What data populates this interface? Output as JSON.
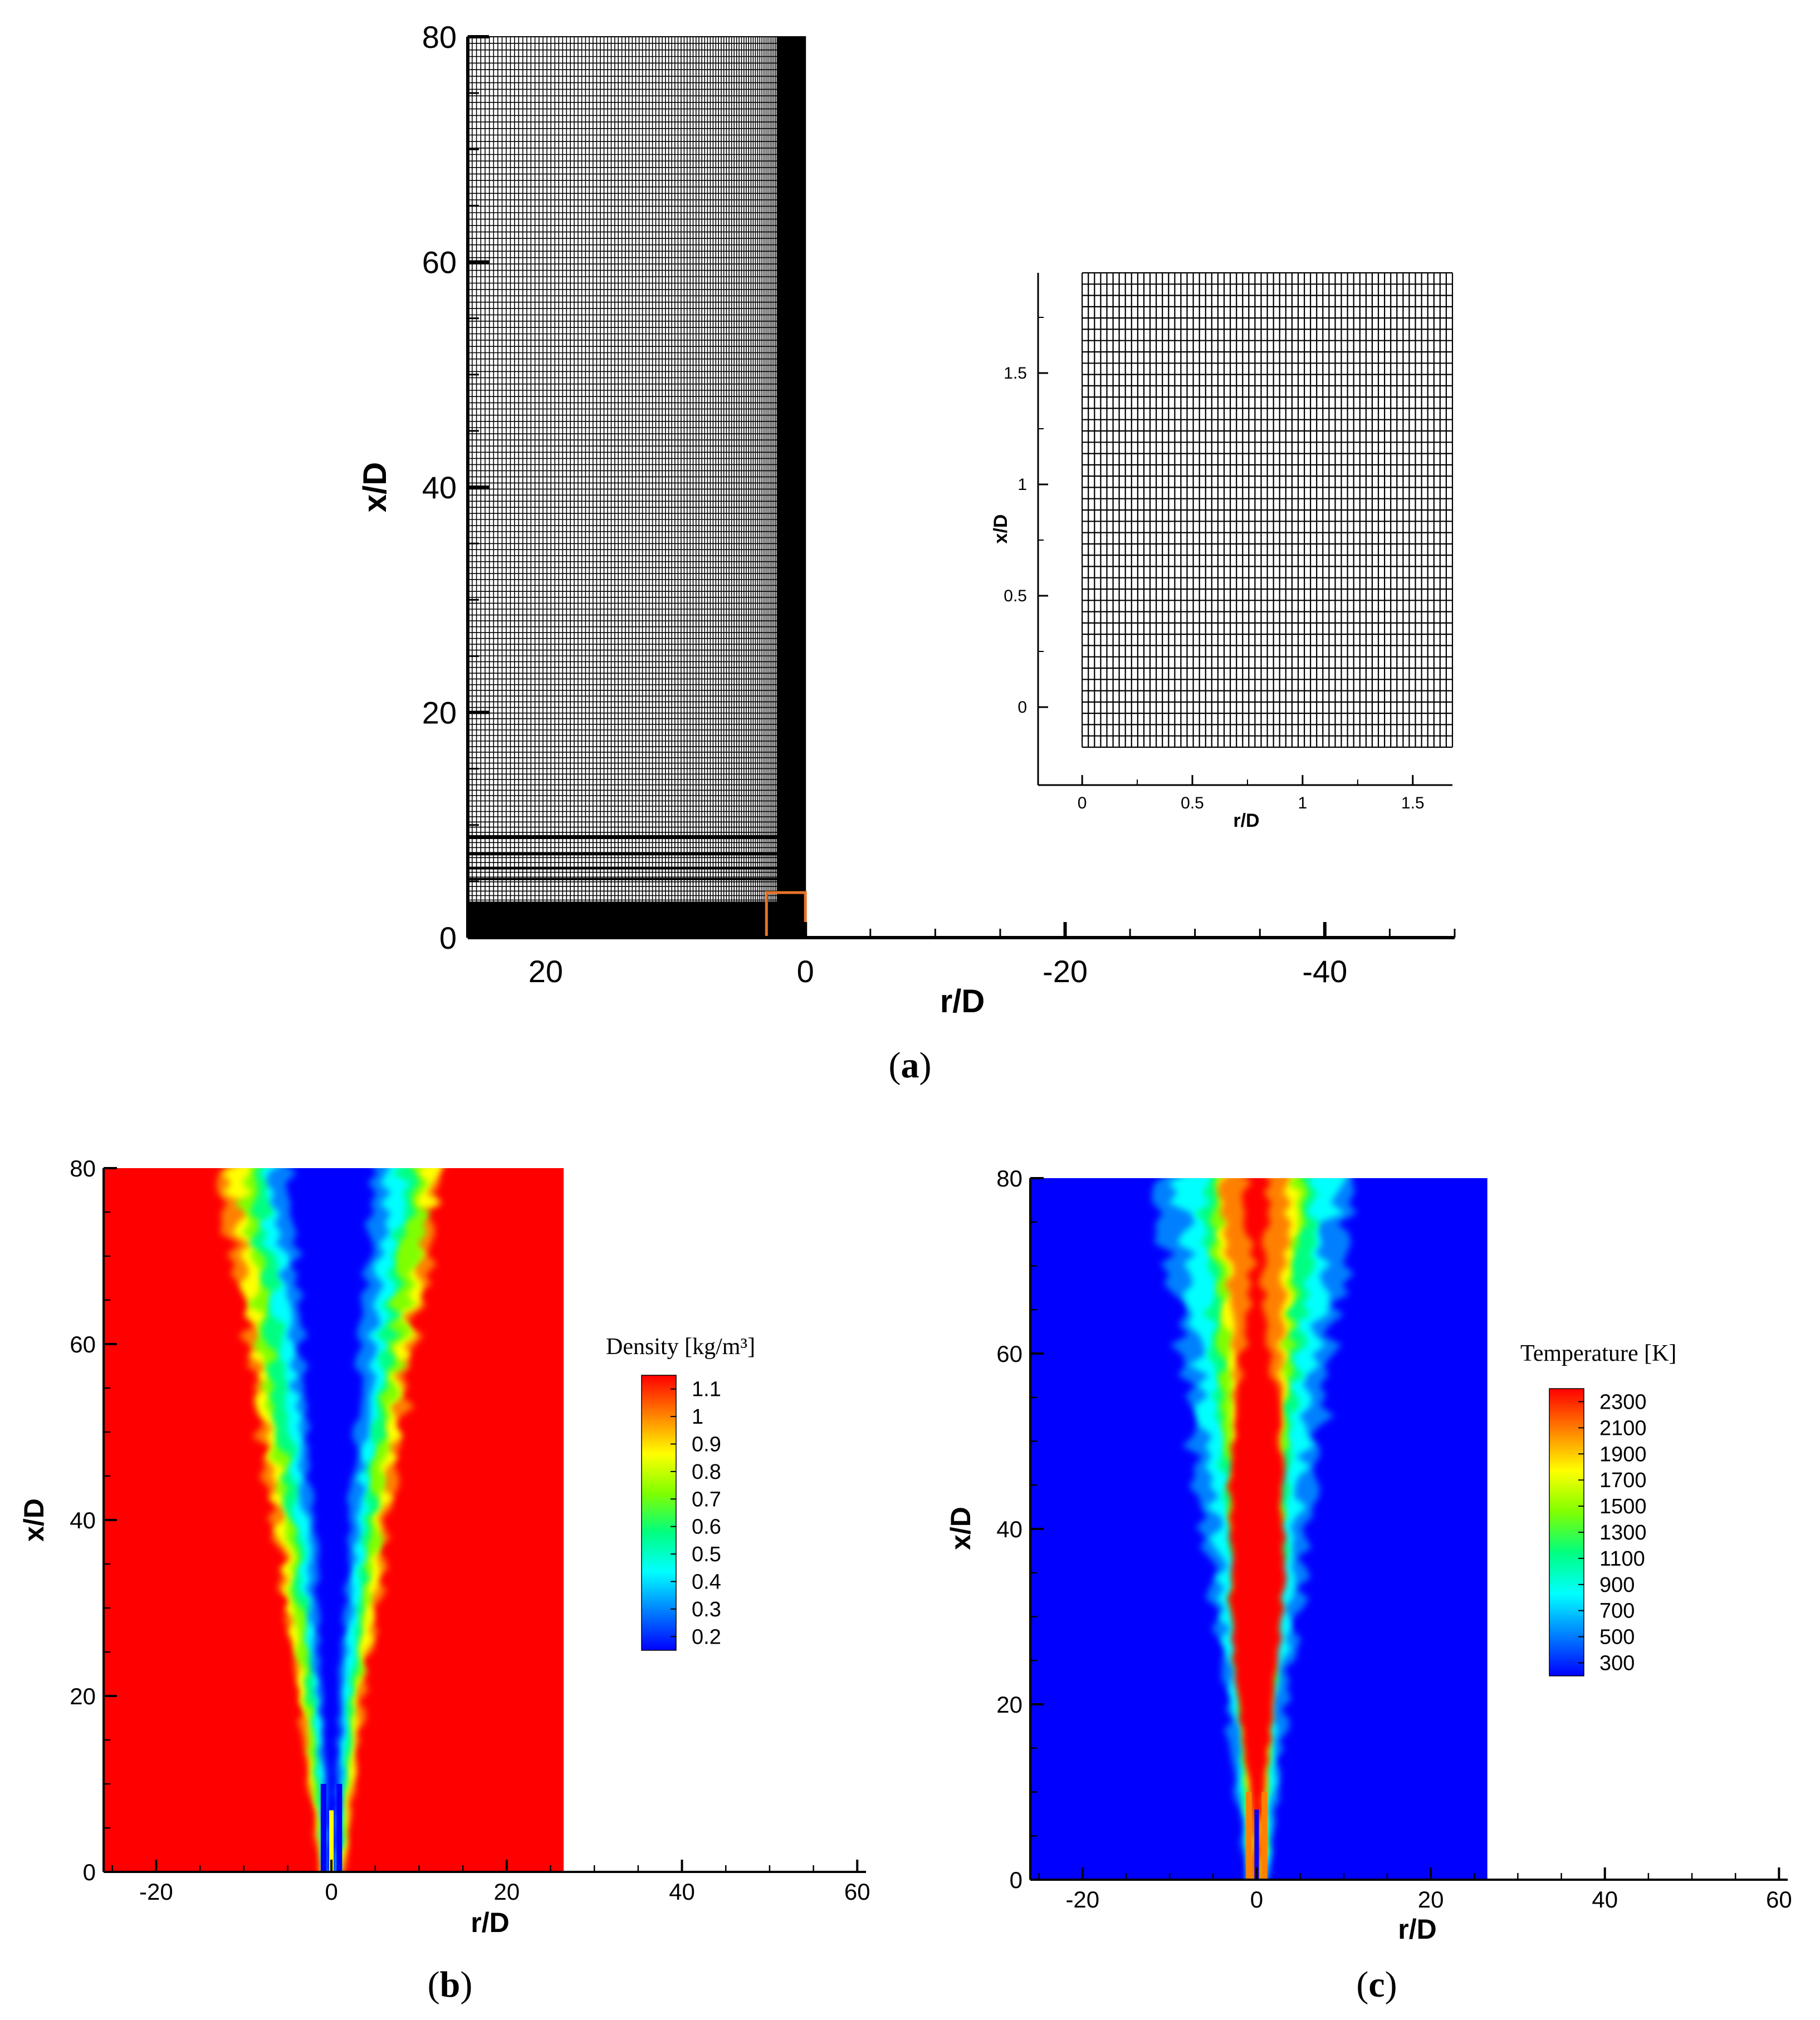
{
  "colors": {
    "axis": "#000000",
    "highlight_box": "#e8742a",
    "jet": [
      "#0000ff",
      "#0080ff",
      "#00ffff",
      "#00ff80",
      "#80ff00",
      "#ffff00",
      "#ff8000",
      "#ff0000"
    ]
  },
  "panels": {
    "a": {
      "label_open": "(",
      "label_letter": "a",
      "label_close": ")"
    },
    "b": {
      "label_open": "(",
      "label_letter": "b",
      "label_close": ")"
    },
    "c": {
      "label_open": "(",
      "label_letter": "c",
      "label_close": ")"
    }
  },
  "chart_data": [
    {
      "id": "a",
      "type": "mesh",
      "xlabel": "r/D",
      "ylabel": "x/D",
      "x_reversed": true,
      "xlim": [
        26,
        -50
      ],
      "ylim": [
        0,
        80
      ],
      "xticks": [
        20,
        0,
        -20,
        -40
      ],
      "yticks": [
        0,
        20,
        40,
        60,
        80
      ],
      "domain_r": [
        0,
        26
      ],
      "domain_x": [
        0,
        80
      ],
      "zoom_box": {
        "r": [
          0,
          3
        ],
        "x": [
          0,
          4
        ]
      },
      "inset": {
        "xlabel": "r/D",
        "ylabel": "x/D",
        "xlim": [
          -0.2,
          1.68
        ],
        "ylim": [
          -0.35,
          1.95
        ],
        "xticks": [
          0,
          0.5,
          1,
          1.5
        ],
        "yticks": [
          0,
          0.5,
          1,
          1.5
        ],
        "mesh_r": [
          0,
          1.68
        ],
        "mesh_x": [
          -0.18,
          1.95
        ]
      }
    },
    {
      "id": "b",
      "type": "heatmap",
      "variable": "density",
      "xlabel": "r/D",
      "ylabel": "x/D",
      "xlim": [
        -26,
        61
      ],
      "ylim": [
        0,
        80
      ],
      "xticks": [
        -20,
        0,
        20,
        40,
        60
      ],
      "yticks": [
        0,
        20,
        40,
        60,
        80
      ],
      "domain_r": [
        -26,
        26.5
      ],
      "colorbar": {
        "title": "Density [kg/m³]",
        "labels": [
          "1.1",
          "1",
          "0.9",
          "0.8",
          "0.7",
          "0.6",
          "0.5",
          "0.4",
          "0.3",
          "0.2"
        ]
      }
    },
    {
      "id": "c",
      "type": "heatmap",
      "variable": "temperature",
      "xlabel": "r/D",
      "ylabel": "x/D",
      "xlim": [
        -26,
        61
      ],
      "ylim": [
        0,
        80
      ],
      "xticks": [
        -20,
        0,
        20,
        40,
        60
      ],
      "yticks": [
        0,
        20,
        40,
        60,
        80
      ],
      "domain_r": [
        -26,
        26.5
      ],
      "colorbar": {
        "title": "Temperature [K]",
        "labels": [
          "2300",
          "2100",
          "1900",
          "1700",
          "1500",
          "1300",
          "1100",
          "900",
          "700",
          "500",
          "300"
        ]
      }
    }
  ]
}
